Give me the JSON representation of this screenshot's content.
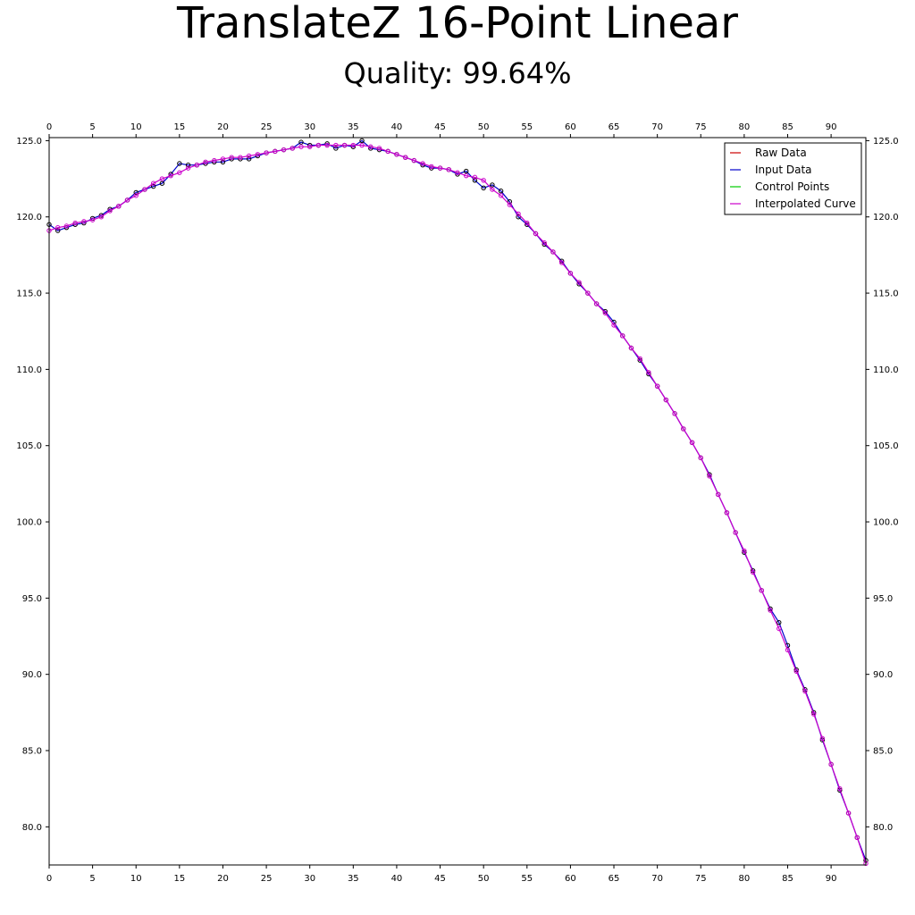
{
  "chart_data": {
    "type": "line",
    "title": "TranslateZ 16-Point Linear",
    "subtitle": "Quality: 99.64%",
    "xlim": [
      0,
      94
    ],
    "ylim": [
      77.5,
      125.2
    ],
    "x_ticks": [
      0,
      5,
      10,
      15,
      20,
      25,
      30,
      35,
      40,
      45,
      50,
      55,
      60,
      65,
      70,
      75,
      80,
      85,
      90
    ],
    "y_ticks": [
      80,
      85,
      90,
      95,
      100,
      105,
      110,
      115,
      120,
      125
    ],
    "y_tick_labels": [
      "80.0",
      "85.0",
      "90.0",
      "95.0",
      "100.0",
      "105.0",
      "110.0",
      "115.0",
      "120.0",
      "125.0"
    ],
    "x_tick_labels": [
      "0",
      "5",
      "10",
      "15",
      "20",
      "25",
      "30",
      "35",
      "40",
      "45",
      "50",
      "55",
      "60",
      "65",
      "70",
      "75",
      "80",
      "85",
      "90"
    ],
    "grid": false,
    "legend_position": "top-right",
    "legend": [
      {
        "name": "Raw Data",
        "color": "#cc0000"
      },
      {
        "name": "Input Data",
        "color": "#0000cc"
      },
      {
        "name": "Control Points",
        "color": "#00cc00"
      },
      {
        "name": "Interpolated Curve",
        "color": "#cc00cc"
      }
    ],
    "series": [
      {
        "name": "Input Data",
        "color": "#0000cc",
        "marker_color": "#000000",
        "values": [
          119.5,
          119.1,
          119.3,
          119.5,
          119.6,
          119.9,
          120.1,
          120.5,
          120.7,
          121.1,
          121.6,
          121.8,
          122.0,
          122.2,
          122.8,
          123.5,
          123.4,
          123.4,
          123.5,
          123.6,
          123.6,
          123.8,
          123.8,
          123.8,
          124.0,
          124.2,
          124.3,
          124.4,
          124.5,
          124.9,
          124.7,
          124.7,
          124.8,
          124.5,
          124.7,
          124.6,
          125.0,
          124.5,
          124.4,
          124.3,
          124.1,
          123.9,
          123.7,
          123.4,
          123.2,
          123.2,
          123.1,
          122.8,
          123.0,
          122.4,
          121.9,
          122.1,
          121.7,
          121.0,
          120.0,
          119.5,
          118.9,
          118.2,
          117.7,
          117.1,
          116.3,
          115.6,
          115.0,
          114.3,
          113.8,
          113.1,
          112.2,
          111.4,
          110.6,
          109.7,
          108.9,
          108.0,
          107.1,
          106.1,
          105.2,
          104.2,
          103.1,
          101.8,
          100.6,
          99.3,
          98.0,
          96.8,
          95.5,
          94.3,
          93.4,
          91.9,
          90.3,
          89.0,
          87.5,
          85.7,
          84.1,
          82.4,
          80.9,
          79.3,
          77.8
        ]
      },
      {
        "name": "Interpolated Curve",
        "color": "#cc00cc",
        "marker_color": "#cc00cc",
        "values": [
          119.1,
          119.3,
          119.4,
          119.6,
          119.7,
          119.8,
          120.0,
          120.4,
          120.7,
          121.1,
          121.4,
          121.8,
          122.2,
          122.5,
          122.7,
          122.9,
          123.2,
          123.4,
          123.6,
          123.7,
          123.8,
          123.9,
          123.9,
          124.0,
          124.1,
          124.2,
          124.3,
          124.4,
          124.5,
          124.6,
          124.6,
          124.7,
          124.7,
          124.7,
          124.7,
          124.7,
          124.7,
          124.6,
          124.5,
          124.3,
          124.1,
          123.9,
          123.7,
          123.5,
          123.3,
          123.2,
          123.1,
          122.9,
          122.7,
          122.6,
          122.4,
          121.8,
          121.4,
          120.8,
          120.2,
          119.6,
          118.9,
          118.3,
          117.7,
          117.0,
          116.3,
          115.7,
          115.0,
          114.3,
          113.7,
          112.9,
          112.2,
          111.4,
          110.7,
          109.8,
          108.9,
          108.0,
          107.1,
          106.1,
          105.2,
          104.2,
          103.0,
          101.8,
          100.6,
          99.3,
          98.1,
          96.7,
          95.5,
          94.2,
          93.0,
          91.6,
          90.2,
          88.9,
          87.4,
          85.8,
          84.1,
          82.5,
          80.9,
          79.3,
          77.6
        ]
      }
    ]
  }
}
